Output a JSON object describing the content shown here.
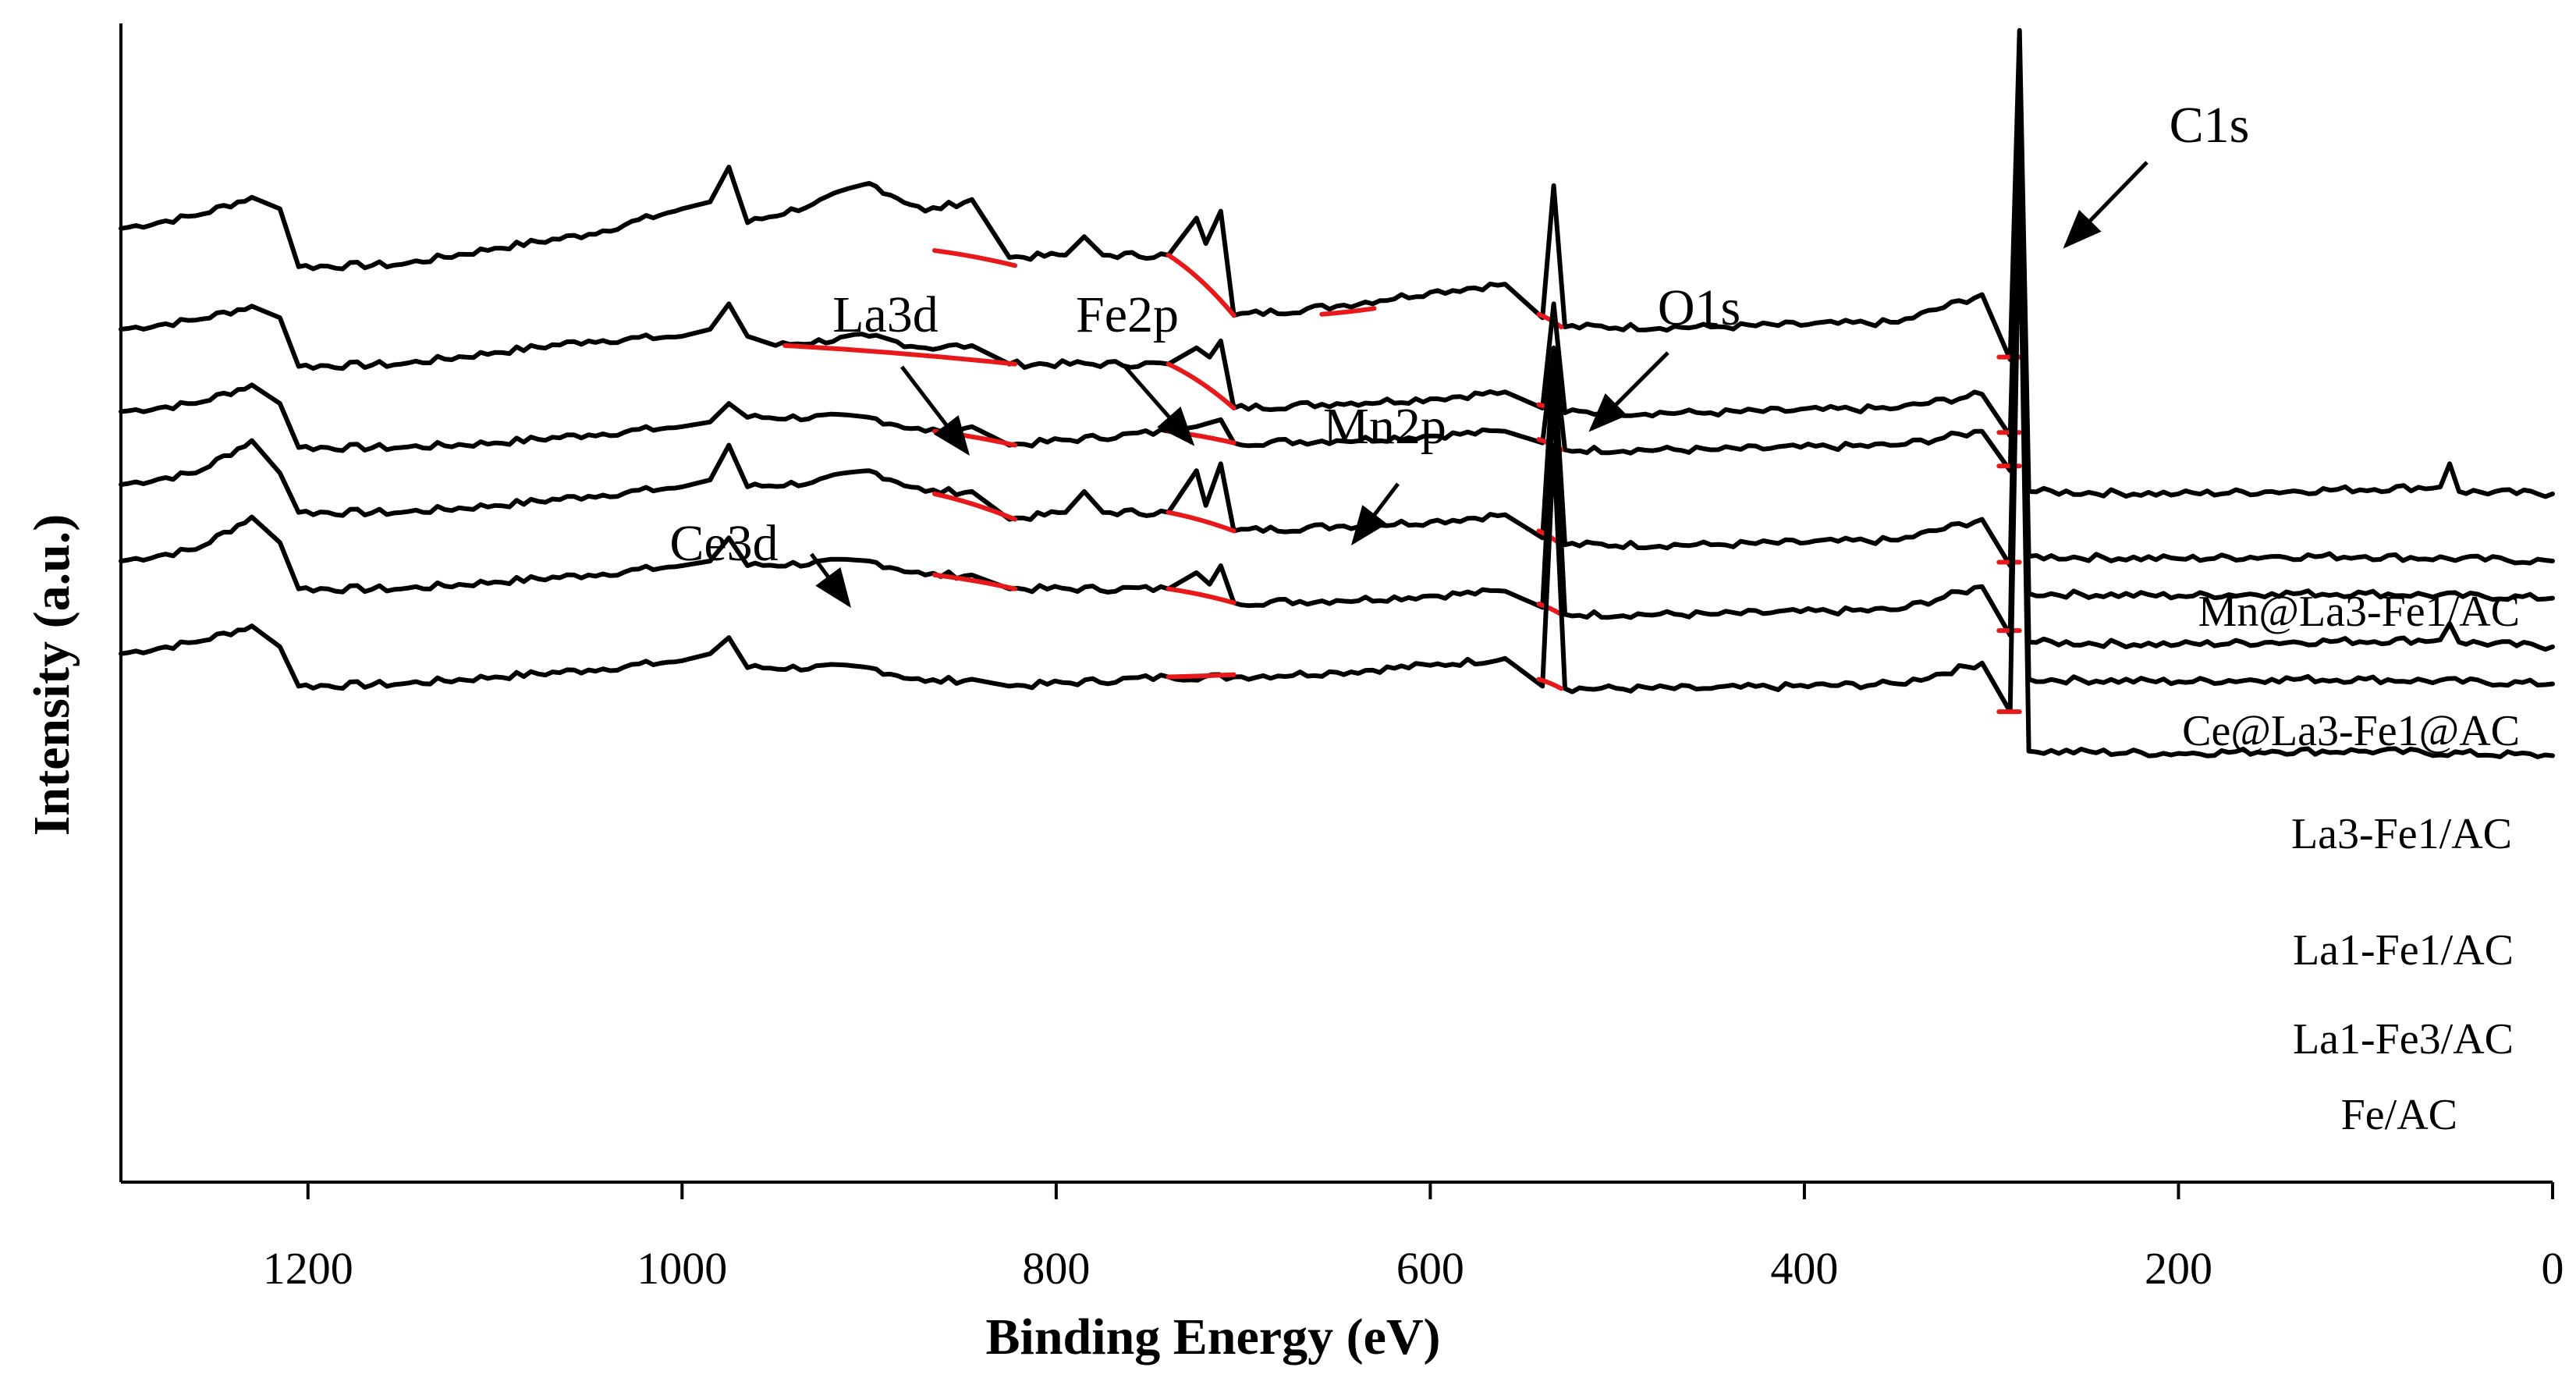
{
  "chart_data": {
    "type": "line",
    "title": "",
    "xlabel": "Binding Energy (eV)",
    "ylabel": "Intensity (a.u.)",
    "xlim": [
      1300,
      0
    ],
    "x_reversed": true,
    "xticks": [
      1200,
      1000,
      800,
      600,
      400,
      200,
      0
    ],
    "xtick_labels": [
      "1200",
      "1000",
      "800",
      "600",
      "400",
      "200",
      "0"
    ],
    "ylim": [
      0,
      1
    ],
    "yticks": [],
    "grid": false,
    "colors": {
      "spectrum": "#000000",
      "background": "#e8191b",
      "axis": "#000000"
    },
    "peaks": [
      {
        "label": "C1s",
        "x": 284.8
      },
      {
        "label": "O1s",
        "x": 532
      },
      {
        "label": "Mn2p",
        "x": 642
      },
      {
        "label": "Fe2p",
        "x": 711
      },
      {
        "label": "La3d",
        "x": 836
      },
      {
        "label": "Ce3d",
        "x": 900
      }
    ],
    "series": [
      {
        "name": "Mn@La3-Fe1/AC",
        "points": [
          [
            1300,
            0.823
          ],
          [
            1260,
            0.834
          ],
          [
            1230,
            0.85
          ],
          [
            1215,
            0.84
          ],
          [
            1205,
            0.79
          ],
          [
            1150,
            0.792
          ],
          [
            1100,
            0.806
          ],
          [
            1050,
            0.818
          ],
          [
            1000,
            0.84
          ],
          [
            985,
            0.846
          ],
          [
            975,
            0.876
          ],
          [
            965,
            0.828
          ],
          [
            930,
            0.844
          ],
          [
            900,
            0.862
          ],
          [
            870,
            0.838
          ],
          [
            845,
            0.848
          ],
          [
            825,
            0.798
          ],
          [
            795,
            0.8
          ],
          [
            785,
            0.816
          ],
          [
            775,
            0.8
          ],
          [
            740,
            0.8
          ],
          [
            725,
            0.832
          ],
          [
            720,
            0.81
          ],
          [
            712,
            0.838
          ],
          [
            705,
            0.748
          ],
          [
            650,
            0.756
          ],
          [
            600,
            0.768
          ],
          [
            560,
            0.775
          ],
          [
            540,
            0.746
          ],
          [
            534,
            0.86
          ],
          [
            528,
            0.738
          ],
          [
            450,
            0.738
          ],
          [
            350,
            0.742
          ],
          [
            305,
            0.766
          ],
          [
            290,
            0.71
          ],
          [
            285,
            0.994
          ],
          [
            280,
            0.596
          ],
          [
            200,
            0.594
          ],
          [
            150,
            0.596
          ],
          [
            60,
            0.6
          ],
          [
            55,
            0.62
          ],
          [
            50,
            0.596
          ],
          [
            0,
            0.594
          ]
        ],
        "background": [
          [
            [
              865,
              0.804
            ],
            [
              822,
              0.791
            ]
          ],
          [
            [
              740,
              0.8
            ],
            [
              705,
              0.748
            ]
          ],
          [
            [
              658,
              0.749
            ],
            [
              630,
              0.754
            ]
          ],
          [
            [
              542,
              0.749
            ],
            [
              530,
              0.738
            ]
          ],
          [
            [
              296,
              0.712
            ],
            [
              285,
              0.712
            ]
          ]
        ]
      },
      {
        "name": "Ce@La3-Fe1@AC",
        "points": [
          [
            1300,
            0.736
          ],
          [
            1260,
            0.744
          ],
          [
            1230,
            0.756
          ],
          [
            1215,
            0.746
          ],
          [
            1205,
            0.704
          ],
          [
            1150,
            0.706
          ],
          [
            1100,
            0.716
          ],
          [
            1050,
            0.726
          ],
          [
            1000,
            0.73
          ],
          [
            985,
            0.736
          ],
          [
            975,
            0.758
          ],
          [
            965,
            0.73
          ],
          [
            950,
            0.722
          ],
          [
            900,
            0.73
          ],
          [
            870,
            0.72
          ],
          [
            845,
            0.722
          ],
          [
            825,
            0.706
          ],
          [
            740,
            0.706
          ],
          [
            725,
            0.72
          ],
          [
            718,
            0.712
          ],
          [
            712,
            0.726
          ],
          [
            705,
            0.668
          ],
          [
            650,
            0.672
          ],
          [
            600,
            0.676
          ],
          [
            560,
            0.682
          ],
          [
            540,
            0.668
          ],
          [
            534,
            0.758
          ],
          [
            528,
            0.664
          ],
          [
            450,
            0.664
          ],
          [
            350,
            0.668
          ],
          [
            305,
            0.68
          ],
          [
            290,
            0.644
          ],
          [
            285,
            0.928
          ],
          [
            280,
            0.54
          ],
          [
            200,
            0.538
          ],
          [
            150,
            0.54
          ],
          [
            100,
            0.54
          ],
          [
            0,
            0.536
          ]
        ],
        "background": [
          [
            [
              945,
              0.722
            ],
            [
              822,
              0.706
            ]
          ],
          [
            [
              740,
              0.706
            ],
            [
              705,
              0.668
            ]
          ],
          [
            [
              542,
              0.671
            ],
            [
              530,
              0.664
            ]
          ],
          [
            [
              296,
              0.647
            ],
            [
              285,
              0.647
            ]
          ]
        ]
      },
      {
        "name": "La3-Fe1/AC",
        "points": [
          [
            1300,
            0.665
          ],
          [
            1260,
            0.672
          ],
          [
            1230,
            0.688
          ],
          [
            1215,
            0.672
          ],
          [
            1205,
            0.634
          ],
          [
            1150,
            0.634
          ],
          [
            1100,
            0.638
          ],
          [
            1050,
            0.645
          ],
          [
            1000,
            0.652
          ],
          [
            985,
            0.656
          ],
          [
            975,
            0.672
          ],
          [
            965,
            0.66
          ],
          [
            900,
            0.66
          ],
          [
            870,
            0.648
          ],
          [
            845,
            0.652
          ],
          [
            825,
            0.636
          ],
          [
            740,
            0.648
          ],
          [
            725,
            0.652
          ],
          [
            712,
            0.658
          ],
          [
            705,
            0.638
          ],
          [
            650,
            0.64
          ],
          [
            600,
            0.644
          ],
          [
            560,
            0.648
          ],
          [
            540,
            0.638
          ],
          [
            534,
            0.72
          ],
          [
            528,
            0.632
          ],
          [
            450,
            0.632
          ],
          [
            350,
            0.636
          ],
          [
            305,
            0.648
          ],
          [
            290,
            0.614
          ],
          [
            285,
            0.914
          ],
          [
            280,
            0.508
          ],
          [
            200,
            0.506
          ],
          [
            150,
            0.508
          ],
          [
            100,
            0.508
          ],
          [
            0,
            0.504
          ]
        ],
        "background": [
          [
            [
              865,
              0.648
            ],
            [
              822,
              0.636
            ]
          ],
          [
            [
              740,
              0.648
            ],
            [
              705,
              0.638
            ]
          ],
          [
            [
              542,
              0.641
            ],
            [
              530,
              0.632
            ]
          ],
          [
            [
              296,
              0.618
            ],
            [
              285,
              0.618
            ]
          ]
        ]
      },
      {
        "name": "La1-Fe1/AC",
        "points": [
          [
            1300,
            0.602
          ],
          [
            1260,
            0.612
          ],
          [
            1230,
            0.64
          ],
          [
            1215,
            0.612
          ],
          [
            1205,
            0.578
          ],
          [
            1150,
            0.578
          ],
          [
            1100,
            0.584
          ],
          [
            1050,
            0.592
          ],
          [
            1000,
            0.6
          ],
          [
            985,
            0.606
          ],
          [
            975,
            0.636
          ],
          [
            965,
            0.6
          ],
          [
            930,
            0.604
          ],
          [
            900,
            0.614
          ],
          [
            870,
            0.596
          ],
          [
            845,
            0.596
          ],
          [
            825,
            0.572
          ],
          [
            795,
            0.578
          ],
          [
            785,
            0.596
          ],
          [
            775,
            0.578
          ],
          [
            740,
            0.578
          ],
          [
            725,
            0.614
          ],
          [
            720,
            0.584
          ],
          [
            712,
            0.62
          ],
          [
            705,
            0.562
          ],
          [
            650,
            0.566
          ],
          [
            600,
            0.57
          ],
          [
            560,
            0.576
          ],
          [
            540,
            0.556
          ],
          [
            534,
            0.71
          ],
          [
            528,
            0.55
          ],
          [
            450,
            0.55
          ],
          [
            350,
            0.554
          ],
          [
            305,
            0.572
          ],
          [
            290,
            0.532
          ],
          [
            285,
            0.9
          ],
          [
            280,
            0.466
          ],
          [
            200,
            0.464
          ],
          [
            150,
            0.466
          ],
          [
            60,
            0.468
          ],
          [
            55,
            0.482
          ],
          [
            50,
            0.466
          ],
          [
            0,
            0.462
          ]
        ],
        "background": [
          [
            [
              865,
              0.594
            ],
            [
              822,
              0.572
            ]
          ],
          [
            [
              740,
              0.578
            ],
            [
              705,
              0.562
            ]
          ],
          [
            [
              542,
              0.562
            ],
            [
              530,
              0.55
            ]
          ],
          [
            [
              296,
              0.535
            ],
            [
              285,
              0.535
            ]
          ]
        ]
      },
      {
        "name": "La1-Fe3/AC",
        "points": [
          [
            1300,
            0.536
          ],
          [
            1260,
            0.546
          ],
          [
            1230,
            0.574
          ],
          [
            1215,
            0.552
          ],
          [
            1205,
            0.512
          ],
          [
            1150,
            0.512
          ],
          [
            1100,
            0.518
          ],
          [
            1050,
            0.524
          ],
          [
            1000,
            0.532
          ],
          [
            985,
            0.536
          ],
          [
            975,
            0.556
          ],
          [
            965,
            0.532
          ],
          [
            900,
            0.536
          ],
          [
            870,
            0.524
          ],
          [
            845,
            0.524
          ],
          [
            825,
            0.512
          ],
          [
            740,
            0.512
          ],
          [
            725,
            0.526
          ],
          [
            718,
            0.516
          ],
          [
            712,
            0.532
          ],
          [
            705,
            0.5
          ],
          [
            650,
            0.502
          ],
          [
            600,
            0.506
          ],
          [
            560,
            0.51
          ],
          [
            540,
            0.496
          ],
          [
            534,
            0.68
          ],
          [
            528,
            0.49
          ],
          [
            450,
            0.49
          ],
          [
            350,
            0.494
          ],
          [
            305,
            0.514
          ],
          [
            290,
            0.472
          ],
          [
            285,
            0.888
          ],
          [
            280,
            0.434
          ],
          [
            200,
            0.432
          ],
          [
            150,
            0.434
          ],
          [
            100,
            0.434
          ],
          [
            0,
            0.43
          ]
        ],
        "background": [
          [
            [
              865,
              0.524
            ],
            [
              822,
              0.512
            ]
          ],
          [
            [
              740,
              0.512
            ],
            [
              705,
              0.5
            ]
          ],
          [
            [
              542,
              0.499
            ],
            [
              530,
              0.49
            ]
          ],
          [
            [
              296,
              0.476
            ],
            [
              285,
              0.476
            ]
          ]
        ]
      },
      {
        "name": "Fe/AC",
        "points": [
          [
            1300,
            0.456
          ],
          [
            1260,
            0.466
          ],
          [
            1230,
            0.48
          ],
          [
            1215,
            0.462
          ],
          [
            1205,
            0.428
          ],
          [
            1150,
            0.43
          ],
          [
            1100,
            0.436
          ],
          [
            1050,
            0.442
          ],
          [
            1000,
            0.45
          ],
          [
            985,
            0.456
          ],
          [
            975,
            0.47
          ],
          [
            965,
            0.444
          ],
          [
            900,
            0.444
          ],
          [
            870,
            0.432
          ],
          [
            845,
            0.434
          ],
          [
            825,
            0.428
          ],
          [
            740,
            0.436
          ],
          [
            705,
            0.436
          ],
          [
            650,
            0.44
          ],
          [
            600,
            0.446
          ],
          [
            560,
            0.452
          ],
          [
            540,
            0.428
          ],
          [
            534,
            0.636
          ],
          [
            528,
            0.426
          ],
          [
            450,
            0.426
          ],
          [
            350,
            0.43
          ],
          [
            305,
            0.448
          ],
          [
            290,
            0.406
          ],
          [
            285,
            0.862
          ],
          [
            280,
            0.372
          ],
          [
            200,
            0.37
          ],
          [
            150,
            0.372
          ],
          [
            100,
            0.372
          ],
          [
            0,
            0.368
          ]
        ],
        "background": [
          [
            [
              740,
              0.436
            ],
            [
              705,
              0.438
            ]
          ],
          [
            [
              542,
              0.434
            ],
            [
              530,
              0.426
            ]
          ],
          [
            [
              296,
              0.406
            ],
            [
              285,
              0.406
            ]
          ]
        ]
      }
    ]
  }
}
